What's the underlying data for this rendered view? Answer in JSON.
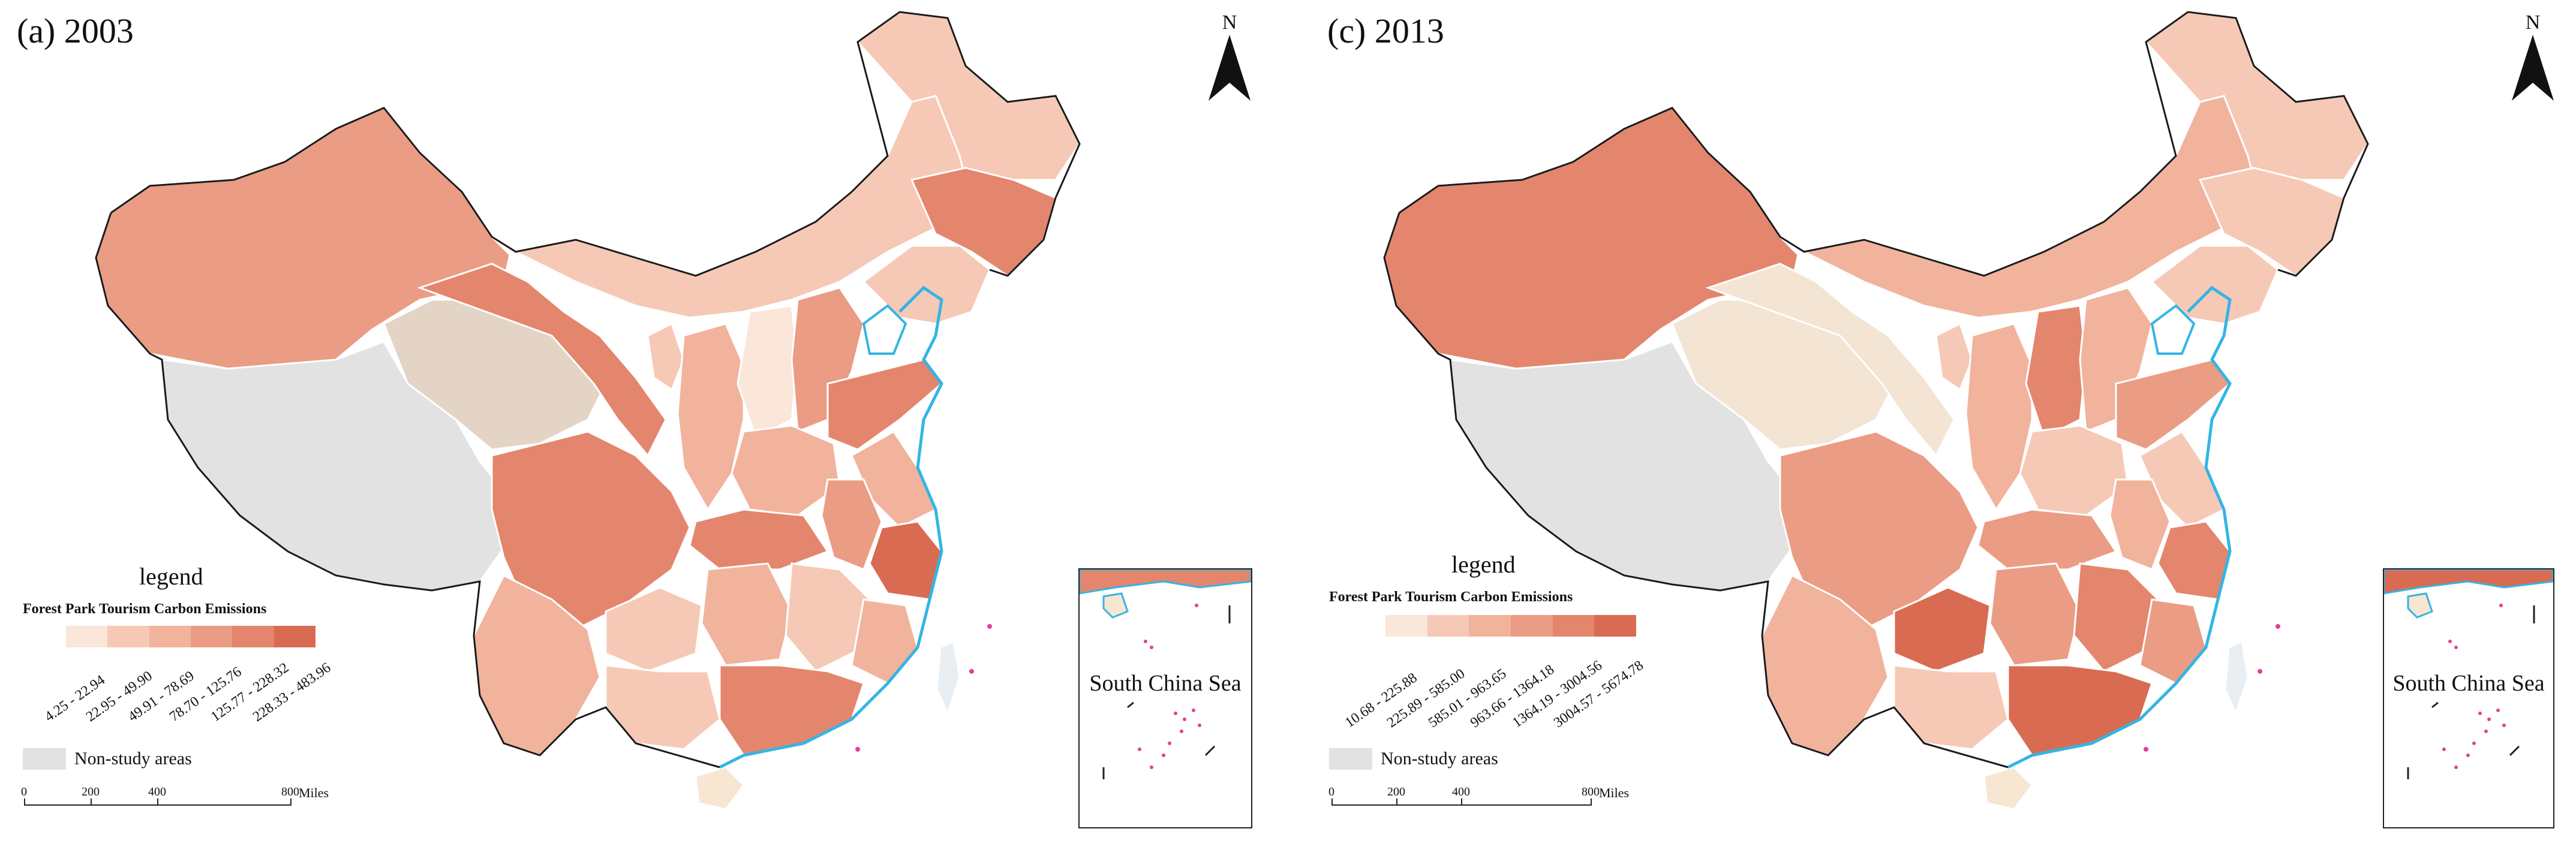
{
  "panels": [
    {
      "title": "(a) 2003",
      "north_label": "N",
      "legend": {
        "title": "legend",
        "subtitle": "Forest Park Tourism Carbon Emissions",
        "classes": [
          {
            "label": "4.25 - 22.94",
            "color": "#fbe6da"
          },
          {
            "label": "22.95 - 49.90",
            "color": "#f6c9b6"
          },
          {
            "label": "49.91 - 78.69",
            "color": "#f1b39c"
          },
          {
            "label": "78.70 - 125.76",
            "color": "#eb9c84"
          },
          {
            "label": "125.77 - 228.32",
            "color": "#e3866d"
          },
          {
            "label": "228.33 - 483.96",
            "color": "#d96b52"
          }
        ],
        "non_study_label": "Non-study areas"
      },
      "scale": {
        "ticks": [
          "0",
          "200",
          "400",
          "800"
        ],
        "unit": "Miles"
      },
      "inset_label": "South China Sea"
    },
    {
      "title": "(c) 2013",
      "north_label": "N",
      "legend": {
        "title": "legend",
        "subtitle": "Forest Park Tourism Carbon Emissions",
        "classes": [
          {
            "label": "10.68 - 225.88",
            "color": "#fbe6da"
          },
          {
            "label": "225.89 - 585.00",
            "color": "#f6c9b6"
          },
          {
            "label": "585.01 - 963.65",
            "color": "#f1b39c"
          },
          {
            "label": "963.66 - 1364.18",
            "color": "#eb9c84"
          },
          {
            "label": "1364.19 - 3004.56",
            "color": "#e3866d"
          },
          {
            "label": "3004.57 - 5674.78",
            "color": "#d96b52"
          }
        ],
        "non_study_label": "Non-study areas"
      },
      "scale": {
        "ticks": [
          "0",
          "200",
          "400",
          "800"
        ],
        "unit": "Miles"
      },
      "inset_label": "South China Sea"
    }
  ],
  "colors": {
    "non_study": "#e2e2e2",
    "region_border": "#ffffff",
    "coastline": "#33b5e5",
    "islands": "#e0409a"
  }
}
